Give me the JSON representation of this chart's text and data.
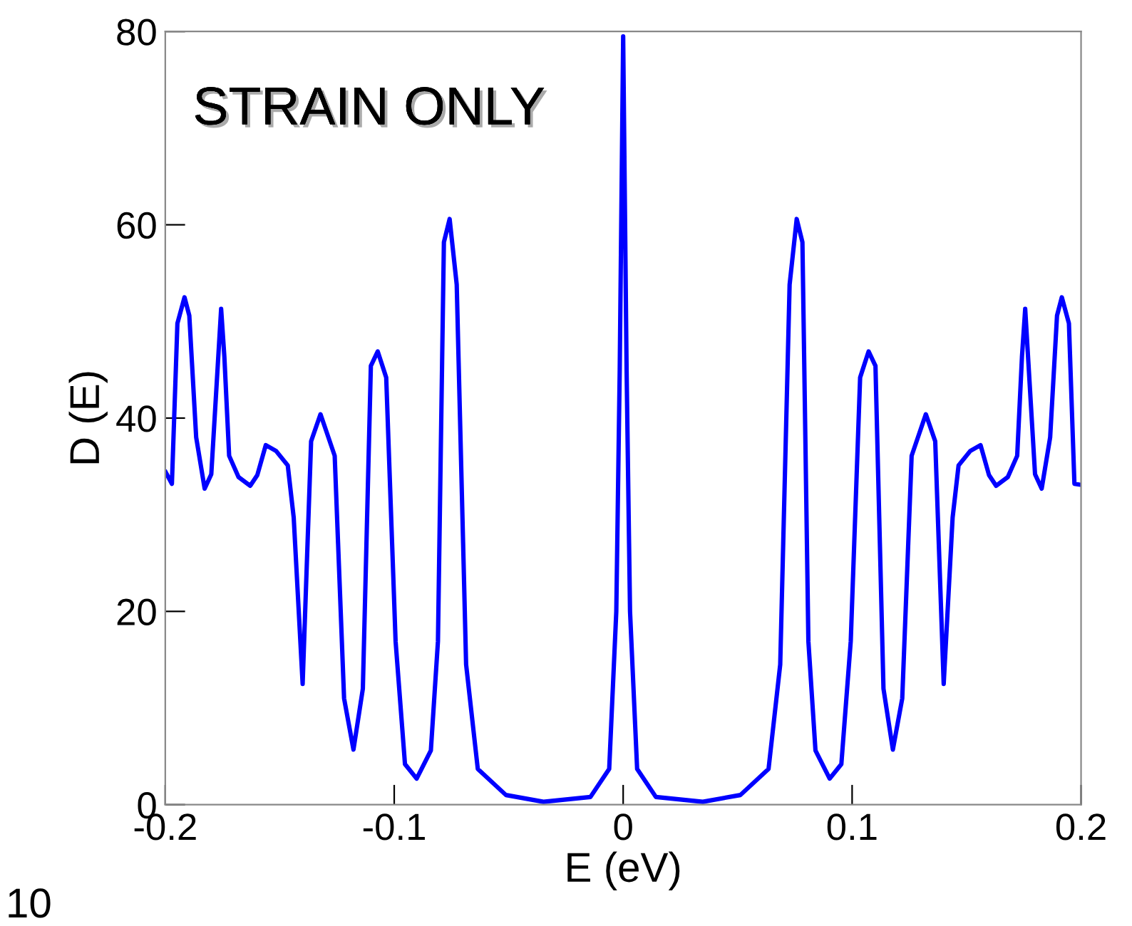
{
  "chart_data": {
    "type": "line",
    "xlabel": "E (eV)",
    "ylabel": "D (E)",
    "annotations": [
      "STRAIN ONLY",
      "10"
    ],
    "xlim": [
      -0.2,
      0.2
    ],
    "xticks": [
      -0.2,
      -0.1,
      0,
      0.1,
      0.2
    ],
    "ylim": [
      0,
      80
    ],
    "yticks": [
      0,
      20,
      40,
      60,
      80
    ],
    "grid": false,
    "legend": false,
    "marker": "none",
    "line_style": "solid",
    "series": [
      {
        "color": "#0000ff",
        "x": [
          -0.1998,
          -0.1971,
          -0.1947,
          -0.1916,
          -0.1895,
          -0.1865,
          -0.1828,
          -0.1799,
          -0.1756,
          -0.1742,
          -0.1721,
          -0.168,
          -0.1629,
          -0.1598,
          -0.1561,
          -0.1516,
          -0.1465,
          -0.1439,
          -0.14,
          -0.1363,
          -0.1322,
          -0.126,
          -0.1219,
          -0.1178,
          -0.1137,
          -0.1102,
          -0.1072,
          -0.1035,
          -0.0994,
          -0.0953,
          -0.0902,
          -0.084,
          -0.0809,
          -0.0783,
          -0.0758,
          -0.0727,
          -0.0686,
          -0.0635,
          -0.0512,
          -0.0348,
          -0.0143,
          -0.0061,
          -0.003,
          -0.0015,
          0,
          0.0015,
          0.003,
          0.0061,
          0.0143,
          0.0348,
          0.0512,
          0.0635,
          0.0686,
          0.0727,
          0.0758,
          0.0783,
          0.0809,
          0.084,
          0.0902,
          0.0953,
          0.0994,
          0.1035,
          0.1072,
          0.1102,
          0.1137,
          0.1178,
          0.1219,
          0.126,
          0.1322,
          0.1363,
          0.14,
          0.1439,
          0.1465,
          0.1516,
          0.1561,
          0.1598,
          0.1629,
          0.168,
          0.1721,
          0.1742,
          0.1756,
          0.1799,
          0.1828,
          0.1865,
          0.1895,
          0.1916,
          0.1947,
          0.1971,
          0.1998
        ],
        "values": [
          34.4,
          33.2,
          49.8,
          52.5,
          50.6,
          38,
          32.7,
          34.2,
          51.3,
          46.4,
          36.1,
          33.9,
          33,
          34.1,
          37.2,
          36.6,
          35.1,
          29.7,
          12.5,
          37.6,
          40.4,
          36.1,
          11,
          5.7,
          12,
          45.4,
          46.9,
          44.2,
          16.9,
          4.2,
          2.7,
          5.6,
          16.9,
          58.2,
          60.6,
          53.8,
          14.5,
          3.7,
          1,
          0.3,
          0.8,
          3.7,
          20,
          45,
          79.5,
          45,
          20,
          3.7,
          0.8,
          0.3,
          1,
          3.7,
          14.5,
          53.8,
          60.6,
          58.2,
          16.9,
          5.6,
          2.7,
          4.2,
          16.9,
          44.2,
          46.9,
          45.4,
          12,
          5.7,
          11,
          36.1,
          40.4,
          37.6,
          12.5,
          29.7,
          35.1,
          36.6,
          37.2,
          34.1,
          33,
          33.9,
          36.1,
          46.4,
          51.3,
          34.2,
          32.7,
          38,
          50.6,
          52.5,
          49.8,
          33.2,
          33.1
        ]
      }
    ]
  }
}
